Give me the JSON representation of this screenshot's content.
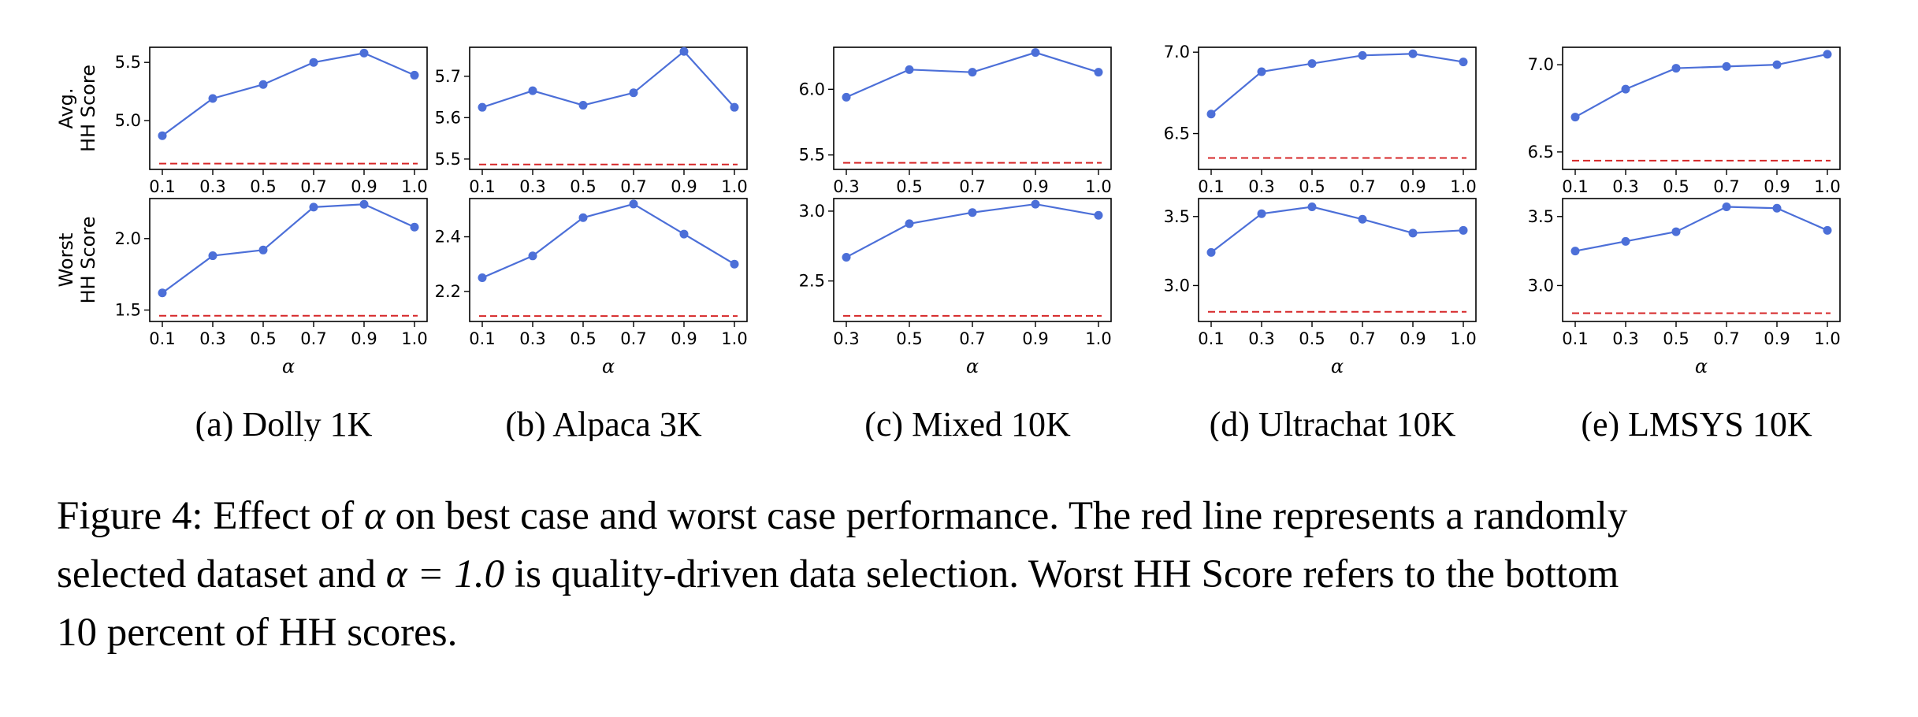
{
  "chart_data": [
    {
      "type": "line",
      "subcaption": "(a) Dolly 1K",
      "row_labels": [
        [
          "Avg.",
          "HH Score"
        ],
        [
          "Worst",
          "HH Score"
        ]
      ],
      "xlabel": "α",
      "x": [
        "0.1",
        "0.3",
        "0.5",
        "0.7",
        "0.9",
        "1.0"
      ],
      "top": {
        "values": [
          4.87,
          5.19,
          5.31,
          5.5,
          5.58,
          5.39
        ],
        "random_baseline": 4.63,
        "ylim": [
          4.58,
          5.63
        ],
        "yticks": [
          "5.0",
          "5.5"
        ],
        "color": "#4c6fd8",
        "baseline_color": "#d62728"
      },
      "bottom": {
        "values": [
          1.62,
          1.88,
          1.92,
          2.22,
          2.24,
          2.08
        ],
        "random_baseline": 1.46,
        "ylim": [
          1.42,
          2.28
        ],
        "yticks": [
          "1.5",
          "2.0"
        ],
        "color": "#4c6fd8",
        "baseline_color": "#d62728"
      }
    },
    {
      "type": "line",
      "subcaption": "(b) Alpaca 3K",
      "xlabel": "α",
      "x": [
        "0.1",
        "0.3",
        "0.5",
        "0.7",
        "0.9",
        "1.0"
      ],
      "top": {
        "values": [
          5.625,
          5.665,
          5.63,
          5.66,
          5.76,
          5.625
        ],
        "random_baseline": 5.487,
        "ylim": [
          5.475,
          5.77
        ],
        "yticks": [
          "5.5",
          "5.6",
          "5.7"
        ],
        "color": "#4c6fd8",
        "baseline_color": "#d62728"
      },
      "bottom": {
        "values": [
          2.25,
          2.33,
          2.47,
          2.52,
          2.41,
          2.3
        ],
        "random_baseline": 2.11,
        "ylim": [
          2.09,
          2.54
        ],
        "yticks": [
          "2.2",
          "2.4"
        ],
        "color": "#4c6fd8",
        "baseline_color": "#d62728"
      }
    },
    {
      "type": "line",
      "subcaption": "(c) Mixed 10K",
      "xlabel": "α",
      "x": [
        "0.3",
        "0.5",
        "0.7",
        "0.9",
        "1.0"
      ],
      "top": {
        "values": [
          5.94,
          6.15,
          6.13,
          6.28,
          6.13
        ],
        "random_baseline": 5.44,
        "ylim": [
          5.39,
          6.32
        ],
        "yticks": [
          "5.5",
          "6.0"
        ],
        "color": "#4c6fd8",
        "baseline_color": "#d62728"
      },
      "bottom": {
        "values": [
          2.67,
          2.91,
          2.99,
          3.05,
          2.97
        ],
        "random_baseline": 2.25,
        "ylim": [
          2.21,
          3.09
        ],
        "yticks": [
          "2.5",
          "3.0"
        ],
        "color": "#4c6fd8",
        "baseline_color": "#d62728"
      }
    },
    {
      "type": "line",
      "subcaption": "(d) Ultrachat 10K",
      "xlabel": "α",
      "x": [
        "0.1",
        "0.3",
        "0.5",
        "0.7",
        "0.9",
        "1.0"
      ],
      "top": {
        "values": [
          6.62,
          6.88,
          6.93,
          6.98,
          6.99,
          6.94
        ],
        "random_baseline": 6.35,
        "ylim": [
          6.28,
          7.03
        ],
        "yticks": [
          "6.5",
          "7.0"
        ],
        "color": "#4c6fd8",
        "baseline_color": "#d62728"
      },
      "bottom": {
        "values": [
          3.24,
          3.52,
          3.57,
          3.48,
          3.38,
          3.4
        ],
        "random_baseline": 2.81,
        "ylim": [
          2.74,
          3.63
        ],
        "yticks": [
          "3.0",
          "3.5"
        ],
        "color": "#4c6fd8",
        "baseline_color": "#d62728"
      }
    },
    {
      "type": "line",
      "subcaption": "(e) LMSYS 10K",
      "xlabel": "α",
      "x": [
        "0.1",
        "0.3",
        "0.5",
        "0.7",
        "0.9",
        "1.0"
      ],
      "top": {
        "values": [
          6.7,
          6.86,
          6.98,
          6.99,
          7.0,
          7.06
        ],
        "random_baseline": 6.45,
        "ylim": [
          6.4,
          7.1
        ],
        "yticks": [
          "6.5",
          "7.0"
        ],
        "color": "#4c6fd8",
        "baseline_color": "#d62728"
      },
      "bottom": {
        "values": [
          3.25,
          3.32,
          3.39,
          3.57,
          3.56,
          3.4
        ],
        "random_baseline": 2.8,
        "ylim": [
          2.74,
          3.63
        ],
        "yticks": [
          "3.0",
          "3.5"
        ],
        "color": "#4c6fd8",
        "baseline_color": "#d62728"
      }
    }
  ],
  "caption": {
    "line1_a": "Figure 4: Effect of ",
    "alpha": "α",
    "line1_b": " on best case and worst case performance. The red line represents a randomly",
    "line2_a": "selected dataset and ",
    "line2_eq": "α = 1.0",
    "line2_b": " is quality-driven data selection. Worst HH Score refers to the bottom",
    "line3": "10 percent of HH scores."
  }
}
